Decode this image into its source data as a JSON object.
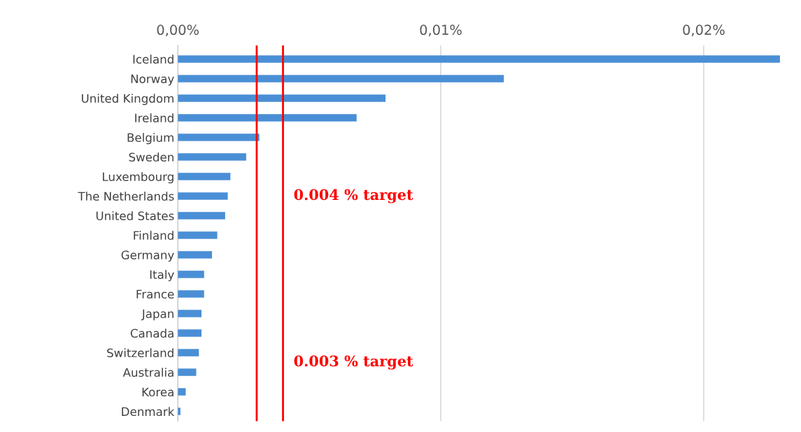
{
  "chart_data": {
    "type": "bar",
    "orientation": "horizontal",
    "categories": [
      "Iceland",
      "Norway",
      "United Kingdom",
      "Ireland",
      "Belgium",
      "Sweden",
      "Luxembourg",
      "The Netherlands",
      "United States",
      "Finland",
      "Germany",
      "Italy",
      "France",
      "Japan",
      "Canada",
      "Switzerland",
      "Australia",
      "Korea",
      "Denmark"
    ],
    "values": [
      0.0229,
      0.0124,
      0.0079,
      0.0068,
      0.0031,
      0.0026,
      0.002,
      0.0019,
      0.0018,
      0.0015,
      0.0013,
      0.001,
      0.001,
      0.0009,
      0.0009,
      0.0008,
      0.0007,
      0.0003,
      0.0001
    ],
    "color": "#4a8fd6",
    "xlim": [
      0,
      0.023
    ],
    "xticks": [
      {
        "value": 0,
        "label": "0,00%"
      },
      {
        "value": 0.01,
        "label": "0,01%"
      },
      {
        "value": 0.02,
        "label": "0,02%"
      }
    ],
    "grid": "x",
    "ref_lines": [
      {
        "axis": "x",
        "value": 0.003,
        "label": "0.003 % target",
        "color": "#ff0000"
      },
      {
        "axis": "x",
        "value": 0.004,
        "label": "0.004 % target",
        "color": "#ff0000"
      }
    ]
  }
}
